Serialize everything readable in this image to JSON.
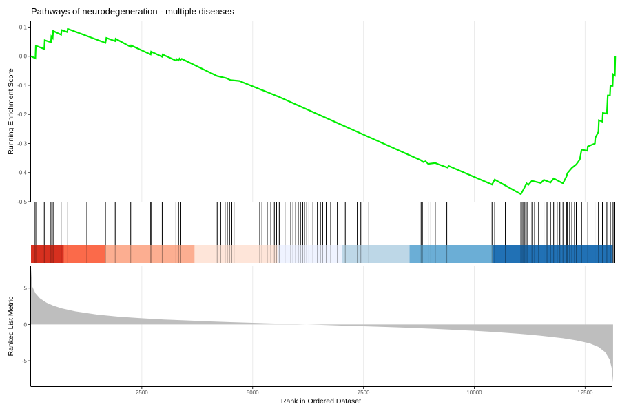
{
  "chart_data": {
    "type": "line",
    "title": "Pathways of neurodegeneration - multiple diseases",
    "xlabel": "Rank in Ordered Dataset",
    "xlim": [
      1,
      13100
    ],
    "x_ticks": [
      2500,
      5000,
      7500,
      10000,
      12500
    ],
    "x_tick_labels": [
      "2500",
      "5000",
      "7500",
      "10000",
      "12500"
    ],
    "grid": true,
    "es_panel": {
      "ylabel": "Running Enrichment Score",
      "ylim": [
        -0.5,
        0.12
      ],
      "y_ticks": [
        0.1,
        0.0,
        -0.1,
        -0.2,
        -0.3,
        -0.4,
        -0.5
      ],
      "y_tick_labels": [
        "0.1",
        "0.0",
        "-0.1",
        "-0.2",
        "-0.3",
        "-0.4",
        "-0.5"
      ],
      "line_color": "#00ee00",
      "points": [
        [
          1,
          0.0
        ],
        [
          100,
          -0.007
        ],
        [
          110,
          0.036
        ],
        [
          300,
          0.025
        ],
        [
          310,
          0.055
        ],
        [
          450,
          0.048
        ],
        [
          460,
          0.068
        ],
        [
          490,
          0.062
        ],
        [
          500,
          0.087
        ],
        [
          680,
          0.074
        ],
        [
          690,
          0.09
        ],
        [
          820,
          0.083
        ],
        [
          830,
          0.094
        ],
        [
          1680,
          0.046
        ],
        [
          1700,
          0.063
        ],
        [
          1900,
          0.052
        ],
        [
          1910,
          0.06
        ],
        [
          2250,
          0.032
        ],
        [
          2260,
          0.037
        ],
        [
          2700,
          0.006
        ],
        [
          2710,
          0.016
        ],
        [
          2960,
          -0.002
        ],
        [
          2970,
          0.006
        ],
        [
          3270,
          -0.015
        ],
        [
          3290,
          -0.01
        ],
        [
          3330,
          -0.014
        ],
        [
          3350,
          -0.008
        ],
        [
          3380,
          -0.012
        ],
        [
          3400,
          -0.009
        ],
        [
          4200,
          -0.068
        ],
        [
          4400,
          -0.075
        ],
        [
          4500,
          -0.082
        ],
        [
          4700,
          -0.085
        ],
        [
          5600,
          -0.14
        ],
        [
          8800,
          -0.358
        ],
        [
          8850,
          -0.364
        ],
        [
          8900,
          -0.361
        ],
        [
          8960,
          -0.37
        ],
        [
          9120,
          -0.367
        ],
        [
          9200,
          -0.372
        ],
        [
          9400,
          -0.383
        ],
        [
          9420,
          -0.377
        ],
        [
          10400,
          -0.441
        ],
        [
          10460,
          -0.424
        ],
        [
          11050,
          -0.474
        ],
        [
          11110,
          -0.458
        ],
        [
          11180,
          -0.437
        ],
        [
          11220,
          -0.442
        ],
        [
          11300,
          -0.428
        ],
        [
          11500,
          -0.436
        ],
        [
          11570,
          -0.425
        ],
        [
          11720,
          -0.434
        ],
        [
          11790,
          -0.42
        ],
        [
          12000,
          -0.437
        ],
        [
          12080,
          -0.413
        ],
        [
          12100,
          -0.402
        ],
        [
          12200,
          -0.384
        ],
        [
          12300,
          -0.372
        ],
        [
          12380,
          -0.355
        ],
        [
          12420,
          -0.321
        ],
        [
          12550,
          -0.325
        ],
        [
          12560,
          -0.31
        ],
        [
          12720,
          -0.3
        ],
        [
          12730,
          -0.28
        ],
        [
          12800,
          -0.26
        ],
        [
          12810,
          -0.22
        ],
        [
          12890,
          -0.225
        ],
        [
          12900,
          -0.195
        ],
        [
          12990,
          -0.197
        ],
        [
          13010,
          -0.135
        ],
        [
          13060,
          -0.135
        ],
        [
          13070,
          -0.102
        ],
        [
          13120,
          -0.102
        ],
        [
          13130,
          -0.062
        ],
        [
          13170,
          -0.066
        ],
        [
          13180,
          0.0
        ]
      ]
    },
    "gene_hits": [
      80,
      110,
      300,
      450,
      500,
      680,
      830,
      1260,
      1680,
      1900,
      2250,
      2700,
      2720,
      2960,
      3270,
      3330,
      3380,
      4200,
      4280,
      4380,
      4430,
      4480,
      4530,
      4580,
      5160,
      5210,
      5330,
      5410,
      5490,
      5540,
      5600,
      5730,
      5860,
      5910,
      5970,
      6030,
      6080,
      6130,
      6170,
      6220,
      6270,
      6360,
      6460,
      6530,
      6580,
      6660,
      6760,
      6910,
      7090,
      7360,
      7440,
      7620,
      8800,
      8830,
      8960,
      9020,
      9120,
      9380,
      10400,
      10460,
      10700,
      11050,
      11080,
      11110,
      11140,
      11190,
      11300,
      11360,
      11450,
      11570,
      11640,
      11720,
      11790,
      11870,
      11930,
      12000,
      12080,
      12100,
      12150,
      12200,
      12260,
      12300,
      12420,
      12560,
      12720,
      12800,
      12890,
      12990,
      13070,
      13130,
      13170
    ],
    "color_bands": [
      "#d7301f",
      "#fb6a4a",
      "#fcae91",
      "#fee5d9",
      "#eff3ff",
      "#bdd7e7",
      "#6baed6",
      "#2171b5"
    ],
    "band_edges": [
      1,
      740,
      1670,
      3690,
      5560,
      7010,
      8540,
      10420,
      13120
    ],
    "metric_panel": {
      "ylabel": "Ranked List Metric",
      "ylim": [
        -8.5,
        8.0
      ],
      "y_ticks": [
        5,
        0,
        -5
      ],
      "y_tick_labels": [
        "5",
        "0",
        "-5"
      ],
      "fill_color": "#bebebe",
      "points": [
        [
          1,
          7.8
        ],
        [
          30,
          5.2
        ],
        [
          100,
          4.3
        ],
        [
          200,
          3.6
        ],
        [
          350,
          3.0
        ],
        [
          500,
          2.6
        ],
        [
          700,
          2.2
        ],
        [
          1000,
          1.8
        ],
        [
          1500,
          1.35
        ],
        [
          2000,
          1.05
        ],
        [
          2500,
          0.85
        ],
        [
          3000,
          0.68
        ],
        [
          3500,
          0.55
        ],
        [
          4000,
          0.42
        ],
        [
          4500,
          0.32
        ],
        [
          5000,
          0.22
        ],
        [
          5500,
          0.13
        ],
        [
          6000,
          0.04
        ],
        [
          6500,
          -0.05
        ],
        [
          7000,
          -0.15
        ],
        [
          7500,
          -0.25
        ],
        [
          8000,
          -0.35
        ],
        [
          8500,
          -0.45
        ],
        [
          9000,
          -0.58
        ],
        [
          9500,
          -0.72
        ],
        [
          10000,
          -0.88
        ],
        [
          10500,
          -1.05
        ],
        [
          11000,
          -1.28
        ],
        [
          11500,
          -1.55
        ],
        [
          12000,
          -1.9
        ],
        [
          12300,
          -2.2
        ],
        [
          12600,
          -2.6
        ],
        [
          12800,
          -3.1
        ],
        [
          12950,
          -3.8
        ],
        [
          13050,
          -4.8
        ],
        [
          13100,
          -6.0
        ],
        [
          13130,
          -8.0
        ]
      ]
    }
  }
}
